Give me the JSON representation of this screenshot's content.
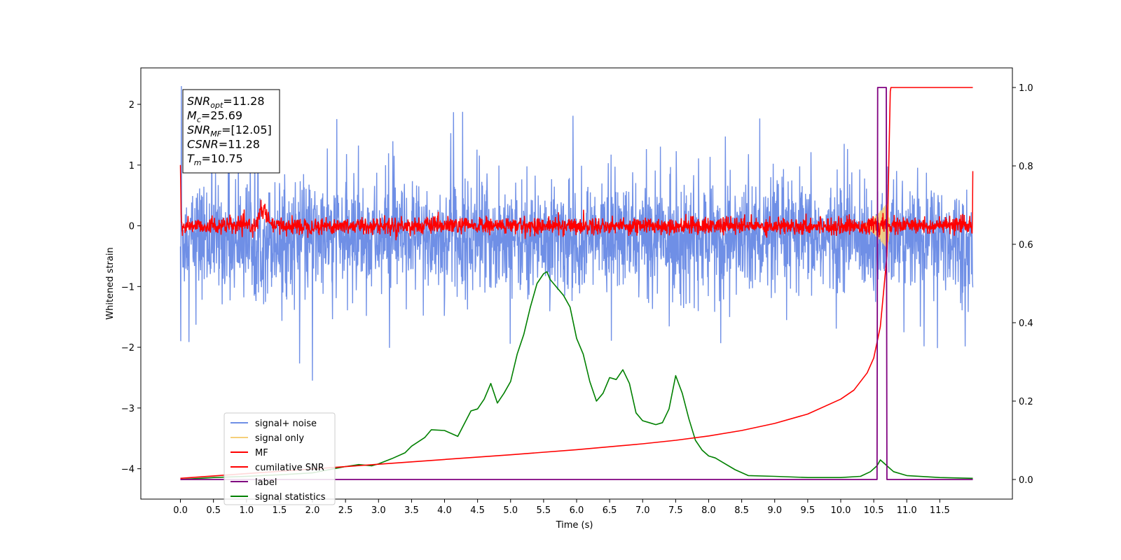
{
  "chart_data": {
    "type": "line",
    "xlabel": "Time (s)",
    "ylabel": "Whitened strain",
    "x_ticks": [
      "0.0",
      "0.5",
      "1.0",
      "1.5",
      "2.0",
      "2.5",
      "3.0",
      "3.5",
      "4.0",
      "4.5",
      "5.0",
      "5.5",
      "6.0",
      "6.5",
      "7.0",
      "7.5",
      "8.0",
      "8.5",
      "9.0",
      "9.5",
      "10.0",
      "10.5",
      "11.0",
      "11.5"
    ],
    "y_ticks_left": [
      "2",
      "1",
      "0",
      "−1",
      "−2",
      "−3",
      "−4"
    ],
    "y_ticks_right": [
      "1.0",
      "0.8",
      "0.6",
      "0.4",
      "0.2",
      "0.0"
    ],
    "xlim": [
      -0.6,
      12.6
    ],
    "ylim_left": [
      -4.5,
      2.6
    ],
    "ylim_right": [
      -0.05,
      1.05
    ],
    "annotation": {
      "lines": [
        {
          "sym": "SNR",
          "sub": "opt",
          "val": "=11.28"
        },
        {
          "sym": "M",
          "sub": "c",
          "val": "=25.69"
        },
        {
          "sym": "SNR",
          "sub": "MF",
          "val": "=[12.05]"
        },
        {
          "sym": "CSNR",
          "sub": "",
          "val": "=11.28"
        },
        {
          "sym": "T",
          "sub": "m",
          "val": "=10.75"
        }
      ]
    },
    "legend": {
      "placement": "lower-left",
      "entries": [
        {
          "label": "signal+ noise",
          "color": "#6f8fe6"
        },
        {
          "label": "signal only",
          "color": "#f6cf7a"
        },
        {
          "label": "MF",
          "color": "#ff0000"
        },
        {
          "label": "cumilative SNR",
          "color": "#ff0000"
        },
        {
          "label": "label",
          "color": "#800080"
        },
        {
          "label": "signal statistics",
          "color": "#008000"
        }
      ]
    },
    "series": [
      {
        "name": "signal+ noise",
        "axis": "left",
        "color": "#6f8fe6",
        "kind": "noise",
        "x_range": [
          0,
          12.0
        ],
        "center": -0.2,
        "std": 0.45,
        "peak_max": 2.3,
        "peak_min": -2.55
      },
      {
        "name": "signal only",
        "axis": "left",
        "color": "#f6cf7a",
        "kind": "chirp",
        "x_start": 10.3,
        "x_end": 10.75,
        "max_amp": 0.45
      },
      {
        "name": "MF",
        "axis": "left",
        "color": "#ff0000",
        "kind": "noise",
        "x_range": [
          0,
          12.0
        ],
        "center": 0.0,
        "std": 0.07,
        "bump_x": 1.25,
        "bump_y": 0.3
      },
      {
        "name": "cumilative SNR",
        "axis": "right",
        "x": [
          0.0,
          1.0,
          2.0,
          3.0,
          4.0,
          5.0,
          6.0,
          7.0,
          7.5,
          8.0,
          8.5,
          9.0,
          9.5,
          10.0,
          10.2,
          10.4,
          10.5,
          10.6,
          10.7,
          10.75,
          10.76,
          11.0,
          11.5,
          12.0
        ],
        "y": [
          0.003,
          0.015,
          0.027,
          0.039,
          0.051,
          0.063,
          0.076,
          0.091,
          0.1,
          0.111,
          0.125,
          0.143,
          0.167,
          0.205,
          0.228,
          0.272,
          0.31,
          0.39,
          0.57,
          0.99,
          1.0,
          1.0,
          1.0,
          1.0
        ]
      },
      {
        "name": "label",
        "axis": "right",
        "color": "#800080",
        "x": [
          0.0,
          10.55,
          10.56,
          10.69,
          10.7,
          12.0
        ],
        "y": [
          0.0,
          0.0,
          1.0,
          1.0,
          0.0,
          0.0
        ]
      },
      {
        "name": "signal statistics",
        "axis": "right",
        "color": "#008000",
        "x": [
          0.0,
          0.5,
          1.0,
          1.5,
          2.0,
          2.5,
          2.7,
          2.9,
          3.0,
          3.2,
          3.4,
          3.5,
          3.7,
          3.8,
          4.0,
          4.2,
          4.4,
          4.5,
          4.6,
          4.7,
          4.8,
          4.9,
          5.0,
          5.1,
          5.2,
          5.3,
          5.4,
          5.5,
          5.55,
          5.6,
          5.7,
          5.8,
          5.9,
          6.0,
          6.1,
          6.2,
          6.3,
          6.4,
          6.5,
          6.6,
          6.7,
          6.8,
          6.9,
          7.0,
          7.1,
          7.2,
          7.3,
          7.4,
          7.5,
          7.6,
          7.7,
          7.8,
          7.9,
          8.0,
          8.1,
          8.2,
          8.4,
          8.6,
          9.0,
          9.5,
          10.0,
          10.3,
          10.45,
          10.55,
          10.6,
          10.7,
          10.8,
          11.0,
          11.5,
          12.0
        ],
        "y": [
          0.0,
          0.005,
          0.008,
          0.012,
          0.017,
          0.033,
          0.038,
          0.035,
          0.04,
          0.053,
          0.068,
          0.085,
          0.107,
          0.127,
          0.125,
          0.11,
          0.175,
          0.18,
          0.205,
          0.245,
          0.195,
          0.22,
          0.25,
          0.32,
          0.37,
          0.44,
          0.5,
          0.525,
          0.53,
          0.51,
          0.49,
          0.47,
          0.44,
          0.36,
          0.32,
          0.25,
          0.2,
          0.22,
          0.26,
          0.255,
          0.28,
          0.245,
          0.17,
          0.15,
          0.145,
          0.14,
          0.145,
          0.18,
          0.265,
          0.22,
          0.155,
          0.1,
          0.075,
          0.06,
          0.055,
          0.045,
          0.025,
          0.01,
          0.008,
          0.005,
          0.005,
          0.008,
          0.02,
          0.035,
          0.05,
          0.035,
          0.02,
          0.01,
          0.005,
          0.003
        ]
      }
    ]
  }
}
